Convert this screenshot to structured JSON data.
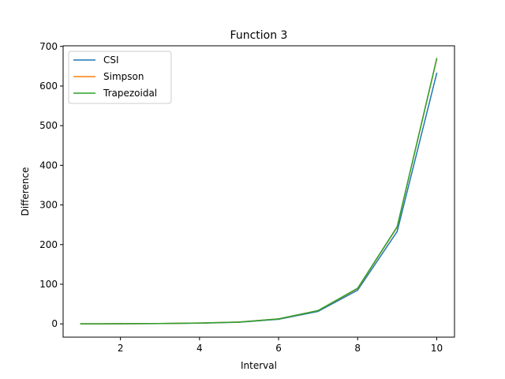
{
  "chart_data": {
    "type": "line",
    "title": "Function 3",
    "xlabel": "Interval",
    "ylabel": "Difference",
    "xlim": [
      0.55,
      10.45
    ],
    "ylim": [
      -33.5,
      701.5
    ],
    "xticks": [
      2,
      4,
      6,
      8,
      10
    ],
    "yticks": [
      0,
      100,
      200,
      300,
      400,
      500,
      600,
      700
    ],
    "grid": false,
    "legend_position": "top-left",
    "x": [
      1,
      2,
      3,
      4,
      5,
      6,
      7,
      8,
      9,
      10
    ],
    "series": [
      {
        "name": "CSI",
        "color": "#1f77b4",
        "values": [
          0,
          0.3,
          0.8,
          1.8,
          4.2,
          11.5,
          31.5,
          85,
          233,
          632
        ]
      },
      {
        "name": "Simpson",
        "color": "#ff7f0e",
        "values": [
          0,
          0.3,
          0.9,
          2.0,
          4.7,
          12.5,
          33.5,
          89,
          244,
          668
        ]
      },
      {
        "name": "Trapezoidal",
        "color": "#2ca02c",
        "values": [
          0,
          0.3,
          0.9,
          2.0,
          4.7,
          12.6,
          33.6,
          90,
          245,
          669
        ]
      }
    ]
  }
}
